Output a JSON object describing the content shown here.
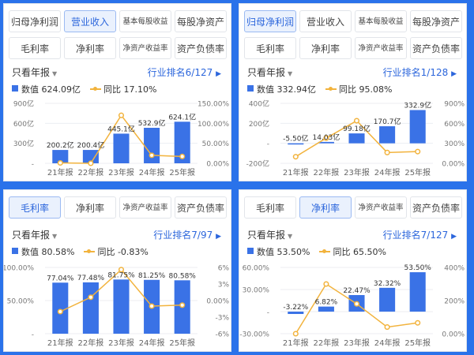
{
  "panels": [
    {
      "tabs_row1": [
        {
          "label": "归母净利润",
          "active": false
        },
        {
          "label": "营业收入",
          "active": true
        },
        {
          "label": "基本每股收益",
          "active": false,
          "small": true
        },
        {
          "label": "每股净资产",
          "active": false
        }
      ],
      "tabs_row2": [
        {
          "label": "毛利率",
          "active": false
        },
        {
          "label": "净利率",
          "active": false
        },
        {
          "label": "净资产收益率",
          "active": false,
          "small": true
        },
        {
          "label": "资产负债率",
          "active": false
        }
      ],
      "filter_label": "只看年报",
      "rank_label": "行业排名6/127",
      "legend": {
        "value_label": "数值",
        "value": "624.09亿",
        "yoy_label": "同比",
        "yoy": "17.10%"
      },
      "chart_data": {
        "type": "bar",
        "categories": [
          "21年报",
          "22年报",
          "23年报",
          "24年报",
          "25年报"
        ],
        "series": [
          {
            "name": "数值",
            "values": [
              200.2,
              200.4,
              445.1,
              532.9,
              624.1
            ]
          },
          {
            "name": "同比",
            "values": [
              1.0,
              0.1,
              120,
              20,
              17.1
            ],
            "axis": "right"
          }
        ],
        "data_labels": [
          "200.2亿",
          "200.4亿",
          "445.1亿",
          "532.9亿",
          "624.1亿"
        ],
        "y_left": {
          "min": 0,
          "max": 900,
          "ticks": [
            "900亿",
            "600亿",
            "300亿",
            "-"
          ]
        },
        "y_right": {
          "min": 0,
          "max": 150,
          "ticks": [
            "150.00%",
            "100.00%",
            "50.00%",
            "0.00%"
          ]
        }
      }
    },
    {
      "tabs_row1": [
        {
          "label": "归母净利润",
          "active": true
        },
        {
          "label": "营业收入",
          "active": false
        },
        {
          "label": "基本每股收益",
          "active": false,
          "small": true
        },
        {
          "label": "每股净资产",
          "active": false
        }
      ],
      "tabs_row2": [
        {
          "label": "毛利率",
          "active": false
        },
        {
          "label": "净利率",
          "active": false
        },
        {
          "label": "净资产收益率",
          "active": false,
          "small": true
        },
        {
          "label": "资产负债率",
          "active": false
        }
      ],
      "filter_label": "只看年报",
      "rank_label": "行业排名1/128",
      "legend": {
        "value_label": "数值",
        "value": "332.94亿",
        "yoy_label": "同比",
        "yoy": "95.08%"
      },
      "chart_data": {
        "type": "bar",
        "categories": [
          "21年报",
          "22年报",
          "23年报",
          "24年报",
          "25年报"
        ],
        "series": [
          {
            "name": "数值",
            "values": [
              -5.5,
              14.03,
              99.18,
              170.7,
              332.9
            ]
          },
          {
            "name": "同比",
            "values": [
              10,
              320,
              610,
              80,
              95.08
            ],
            "axis": "right"
          }
        ],
        "data_labels": [
          "-5.50亿",
          "14.03亿",
          "99.18亿",
          "170.7亿",
          "332.9亿"
        ],
        "y_left": {
          "min": -200,
          "max": 400,
          "ticks": [
            "400亿",
            "200亿",
            "-",
            "-200亿"
          ]
        },
        "y_right": {
          "min": -100,
          "max": 900,
          "ticks": [
            "900%",
            "600%",
            "300%",
            "0.00%"
          ]
        }
      }
    },
    {
      "tabs_row1": [
        {
          "label": "毛利率",
          "active": true
        },
        {
          "label": "净利率",
          "active": false
        },
        {
          "label": "净资产收益率",
          "active": false,
          "small": true
        },
        {
          "label": "资产负债率",
          "active": false
        }
      ],
      "filter_label": "只看年报",
      "rank_label": "行业排名7/97",
      "legend": {
        "value_label": "数值",
        "value": "80.58%",
        "yoy_label": "同比",
        "yoy": "-0.83%"
      },
      "chart_data": {
        "type": "bar",
        "categories": [
          "21年报",
          "22年报",
          "23年报",
          "24年报",
          "25年报"
        ],
        "series": [
          {
            "name": "数值",
            "values": [
              77.04,
              77.48,
              81.75,
              81.25,
              80.58
            ]
          },
          {
            "name": "同比",
            "values": [
              -2.0,
              0.6,
              5.6,
              -1.0,
              -0.83
            ],
            "axis": "right"
          }
        ],
        "data_labels": [
          "77.04%",
          "77.48%",
          "81.75%",
          "81.25%",
          "80.58%"
        ],
        "y_left": {
          "min": 0,
          "max": 100,
          "ticks": [
            "100.00%",
            "50.00%",
            "-"
          ]
        },
        "y_right": {
          "min": -6,
          "max": 6,
          "ticks": [
            "6%",
            "3%",
            "0.00%",
            "-3%",
            "-6%"
          ]
        }
      }
    },
    {
      "tabs_row1": [
        {
          "label": "毛利率",
          "active": false
        },
        {
          "label": "净利率",
          "active": true
        },
        {
          "label": "净资产收益率",
          "active": false,
          "small": true
        },
        {
          "label": "资产负债率",
          "active": false
        }
      ],
      "filter_label": "只看年报",
      "rank_label": "行业排名7/127",
      "legend": {
        "value_label": "数值",
        "value": "53.50%",
        "yoy_label": "同比",
        "yoy": "65.50%"
      },
      "chart_data": {
        "type": "bar",
        "categories": [
          "21年报",
          "22年报",
          "23年报",
          "24年报",
          "25年报"
        ],
        "series": [
          {
            "name": "数值",
            "values": [
              -3.22,
              6.82,
              22.47,
              32.32,
              53.5
            ]
          },
          {
            "name": "同比",
            "values": [
              0,
              300,
              180,
              40,
              65.5
            ],
            "axis": "right"
          }
        ],
        "data_labels": [
          "-3.22%",
          "6.82%",
          "22.47%",
          "32.32%",
          "53.50%"
        ],
        "y_left": {
          "min": -30,
          "max": 60,
          "ticks": [
            "60.00%",
            "30.00%",
            "-",
            "-30.00%"
          ]
        },
        "y_right": {
          "min": 0,
          "max": 400,
          "ticks": [
            "400%",
            "200%",
            "0.00%"
          ]
        }
      }
    }
  ]
}
